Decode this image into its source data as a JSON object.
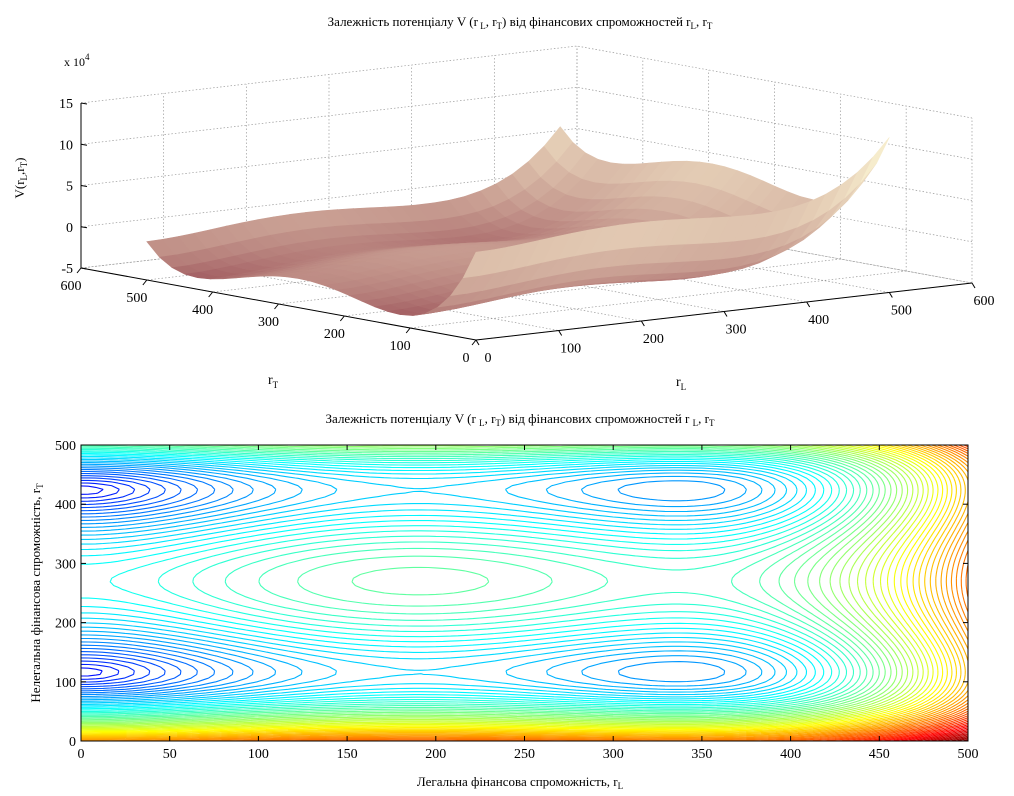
{
  "chart_data": [
    {
      "type": "surface",
      "title": "Залежність потенціалу V (r L, rT) від фінансових спроможностей rL, rT",
      "zlabel": "V(rL,rT)",
      "xlabel": "rL",
      "ylabel": "rT",
      "exponent_label": "x 10",
      "exponent_power": "4",
      "xlim": [
        0,
        600
      ],
      "ylim": [
        0,
        600
      ],
      "zlim": [
        -5,
        15
      ],
      "x_ticks": [
        "0",
        "100",
        "200",
        "300",
        "400",
        "500",
        "600"
      ],
      "y_ticks": [
        "0",
        "100",
        "200",
        "300",
        "400",
        "500",
        "600"
      ],
      "z_ticks": [
        "-5",
        "0",
        "5",
        "10",
        "15"
      ],
      "grid": true,
      "colormap": "pink"
    },
    {
      "type": "contour",
      "title": "Залежність потенціалу V (r  L, rT) від фінансових спроможностей r L, rT",
      "xlabel": "Легальна фінансова спроможність, rL",
      "ylabel": "Нелегальна фінансова спроможність, rT",
      "xlim": [
        0,
        500
      ],
      "ylim": [
        0,
        500
      ],
      "x_ticks": [
        "0",
        "50",
        "100",
        "150",
        "200",
        "250",
        "300",
        "350",
        "400",
        "450",
        "500"
      ],
      "y_ticks": [
        "0",
        "100",
        "200",
        "300",
        "400",
        "500"
      ],
      "colormap": "jet"
    }
  ]
}
